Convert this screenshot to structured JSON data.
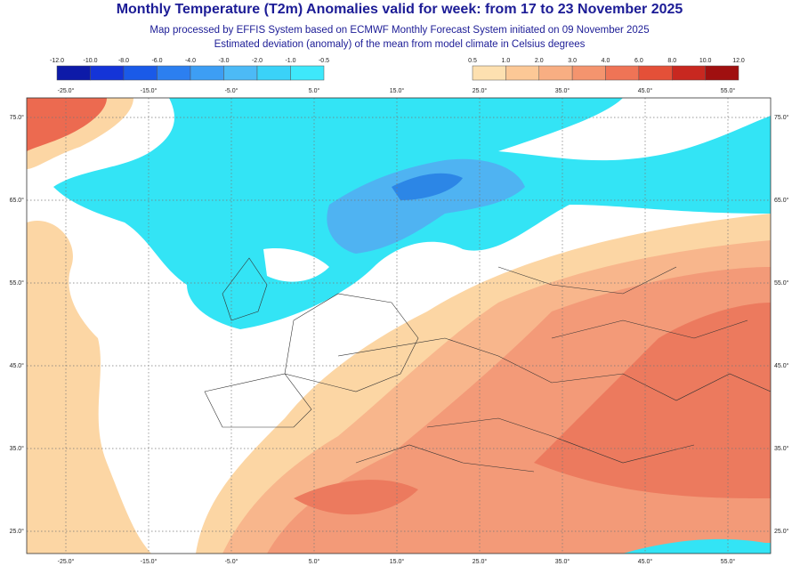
{
  "header": {
    "title": "Monthly Temperature (T2m) Anomalies valid for week: from 17 to 23 November 2025",
    "subtitle": [
      "Map processed by EFFIS System based on ECMWF Monthly Forecast System initiated on 09 November 2025",
      "Estimated deviation (anomaly) of the mean from model climate in Celsius degrees"
    ]
  },
  "legend": {
    "cold": [
      "-12.0",
      "-10.0",
      "-8.0",
      "-6.0",
      "-4.0",
      "-3.0",
      "-2.0",
      "-1.0",
      "-0.5"
    ],
    "warm": [
      "0.5",
      "1.0",
      "2.0",
      "3.0",
      "4.0",
      "6.0",
      "8.0",
      "10.0",
      "12.0"
    ]
  },
  "map": {
    "longitude_labels": [
      "-25.0°",
      "-15.0°",
      "-5.0°",
      "5.0°",
      "15.0°",
      "25.0°",
      "35.0°",
      "45.0°",
      "55.0°"
    ],
    "latitude_labels": [
      "75.0°",
      "65.0°",
      "55.0°",
      "45.0°",
      "35.0°",
      "25.0°"
    ]
  }
}
